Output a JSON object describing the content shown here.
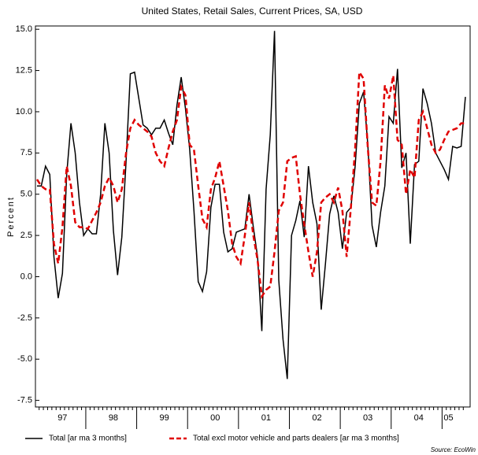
{
  "chart_data": {
    "type": "line",
    "subtitle": "United States, Retail Sales, Current Prices, SA, USD",
    "y_label": "Percent",
    "source": "Source: EcoWin",
    "categories": [
      null,
      null,
      null,
      null,
      null,
      null,
      "97",
      null,
      null,
      null,
      null,
      null,
      null,
      null,
      null,
      null,
      null,
      null,
      "98",
      null,
      null,
      null,
      null,
      null,
      null,
      null,
      null,
      null,
      null,
      null,
      "99",
      null,
      null,
      null,
      null,
      null,
      null,
      null,
      null,
      null,
      null,
      null,
      "00",
      null,
      null,
      null,
      null,
      null,
      null,
      null,
      null,
      null,
      null,
      null,
      "01",
      null,
      null,
      null,
      null,
      null,
      null,
      null,
      null,
      null,
      null,
      null,
      "02",
      null,
      null,
      null,
      null,
      null,
      null,
      null,
      null,
      null,
      null,
      null,
      "03",
      null,
      null,
      null,
      null,
      null,
      null,
      null,
      null,
      null,
      null,
      null,
      "04",
      null,
      null,
      null,
      null,
      null,
      null,
      "05",
      null,
      null,
      null,
      null
    ],
    "series": [
      {
        "name": "Total [ar ma 3 months]",
        "color": "#000000",
        "dash": false,
        "values": [
          5.5,
          5.5,
          6.7,
          6.2,
          1.2,
          -1.3,
          0.2,
          6.2,
          9.3,
          7.5,
          4.5,
          2.5,
          2.9,
          2.6,
          2.6,
          5.0,
          9.3,
          7.5,
          2.8,
          0.1,
          2.4,
          7.0,
          12.3,
          12.4,
          10.8,
          9.2,
          9.0,
          8.6,
          9.0,
          9.0,
          9.5,
          8.7,
          8.0,
          10.4,
          12.1,
          10.2,
          7.7,
          4.0,
          -0.3,
          -0.9,
          0.3,
          4.2,
          5.6,
          5.6,
          2.7,
          1.5,
          1.7,
          2.7,
          2.8,
          2.9,
          5.0,
          3.0,
          1.2,
          -3.3,
          5.3,
          8.6,
          14.9,
          -0.2,
          -3.8,
          -6.2,
          2.5,
          3.4,
          4.6,
          2.4,
          6.7,
          4.5,
          3.2,
          -2.0,
          0.8,
          3.8,
          4.9,
          3.9,
          1.7,
          3.9,
          4.2,
          6.7,
          10.5,
          11.2,
          8.0,
          3.1,
          1.8,
          3.9,
          5.5,
          9.7,
          9.3,
          12.6,
          6.6,
          7.5,
          2.0,
          6.8,
          7.0,
          11.4,
          10.5,
          9.3,
          7.5,
          7.0,
          6.5,
          5.9,
          7.9,
          7.8,
          7.9,
          10.9
        ]
      },
      {
        "name": "Total excl motor vehicle and parts dealers [ar ma 3 months]",
        "color": "#e00000",
        "dash": true,
        "values": [
          5.9,
          5.5,
          5.3,
          5.3,
          2.0,
          0.8,
          3.0,
          6.7,
          5.5,
          3.3,
          3.0,
          3.0,
          2.9,
          3.4,
          3.9,
          4.5,
          5.5,
          6.0,
          5.5,
          4.5,
          5.3,
          7.5,
          9.0,
          9.5,
          9.2,
          9.0,
          8.8,
          8.5,
          7.5,
          7.0,
          6.7,
          7.8,
          8.8,
          9.5,
          11.5,
          11.0,
          8.0,
          7.7,
          5.5,
          3.5,
          3.0,
          5.3,
          6.0,
          7.0,
          5.5,
          4.0,
          2.0,
          1.2,
          0.8,
          2.5,
          4.5,
          2.5,
          1.0,
          -1.2,
          -0.8,
          -0.6,
          1.5,
          4.0,
          4.5,
          7.0,
          7.2,
          7.3,
          5.0,
          3.2,
          1.5,
          0.0,
          1.5,
          4.5,
          4.8,
          5.0,
          4.5,
          5.4,
          4.0,
          1.2,
          4.2,
          7.8,
          12.4,
          12.0,
          7.8,
          4.5,
          4.3,
          7.0,
          11.6,
          10.8,
          12.2,
          8.3,
          8.0,
          5.0,
          6.5,
          6.0,
          9.5,
          10.0,
          9.0,
          8.0,
          7.5,
          7.7,
          8.3,
          8.8,
          8.9,
          9.0,
          9.3,
          9.3
        ]
      }
    ],
    "ylim": [
      -7.9,
      15.2
    ],
    "yticks": [
      {
        "value": -7.5,
        "label": "-7.5"
      },
      {
        "value": -5,
        "label": "-5.0"
      },
      {
        "value": -2.5,
        "label": "-2.5"
      },
      {
        "value": 0,
        "label": "0.0"
      },
      {
        "value": 2.5,
        "label": "2.5"
      },
      {
        "value": 5,
        "label": "5.0"
      },
      {
        "value": 7.5,
        "label": "7.5"
      },
      {
        "value": 10,
        "label": "10.0"
      },
      {
        "value": 12.5,
        "label": "12.5"
      },
      {
        "value": 15,
        "label": "15.0"
      }
    ],
    "grid": false
  }
}
